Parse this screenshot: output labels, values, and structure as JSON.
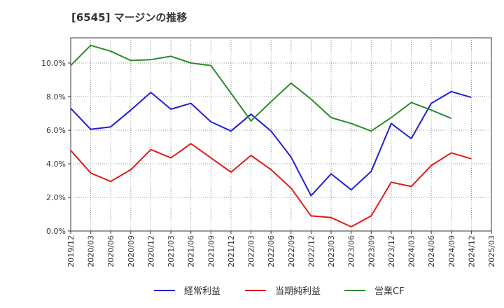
{
  "title": "[6545]  マージンの推移",
  "chart_data": {
    "type": "line",
    "title": "[6545]  マージンの推移",
    "xlabel": "",
    "ylabel": "",
    "ylim": [
      0,
      11.5
    ],
    "grid": true,
    "legend_position": "bottom",
    "y_ticks": [
      {
        "value": 0,
        "label": "0.0%"
      },
      {
        "value": 2,
        "label": "2.0%"
      },
      {
        "value": 4,
        "label": "4.0%"
      },
      {
        "value": 6,
        "label": "6.0%"
      },
      {
        "value": 8,
        "label": "8.0%"
      },
      {
        "value": 10,
        "label": "10.0%"
      }
    ],
    "x": [
      "2019/12",
      "2020/03",
      "2020/06",
      "2020/09",
      "2020/12",
      "2021/03",
      "2021/06",
      "2021/09",
      "2021/12",
      "2022/03",
      "2022/06",
      "2022/09",
      "2022/12",
      "2023/03",
      "2023/06",
      "2023/09",
      "2023/12",
      "2024/03",
      "2024/06",
      "2024/09",
      "2024/12",
      "2025/03"
    ],
    "series": [
      {
        "name": "経常利益",
        "color": "#1f1fd6",
        "values": [
          7.3,
          6.05,
          6.2,
          7.2,
          8.25,
          7.25,
          7.6,
          6.5,
          5.95,
          6.95,
          5.95,
          4.4,
          2.1,
          3.4,
          2.45,
          3.55,
          6.4,
          5.5,
          7.6,
          8.3,
          7.95,
          null
        ]
      },
      {
        "name": "当期純利益",
        "color": "#e31a1a",
        "values": [
          4.8,
          3.45,
          2.95,
          3.65,
          4.85,
          4.35,
          5.2,
          4.35,
          3.5,
          4.5,
          3.65,
          2.55,
          0.9,
          0.8,
          0.25,
          0.9,
          2.9,
          2.65,
          3.9,
          4.65,
          4.3,
          null
        ]
      },
      {
        "name": "営業CF",
        "color": "#2a8a2a",
        "values": [
          9.85,
          11.05,
          10.7,
          10.15,
          10.2,
          10.4,
          10.0,
          9.85,
          8.2,
          6.55,
          7.7,
          8.8,
          7.85,
          6.75,
          6.4,
          5.95,
          6.75,
          7.65,
          7.2,
          6.7,
          null,
          null
        ]
      }
    ]
  }
}
